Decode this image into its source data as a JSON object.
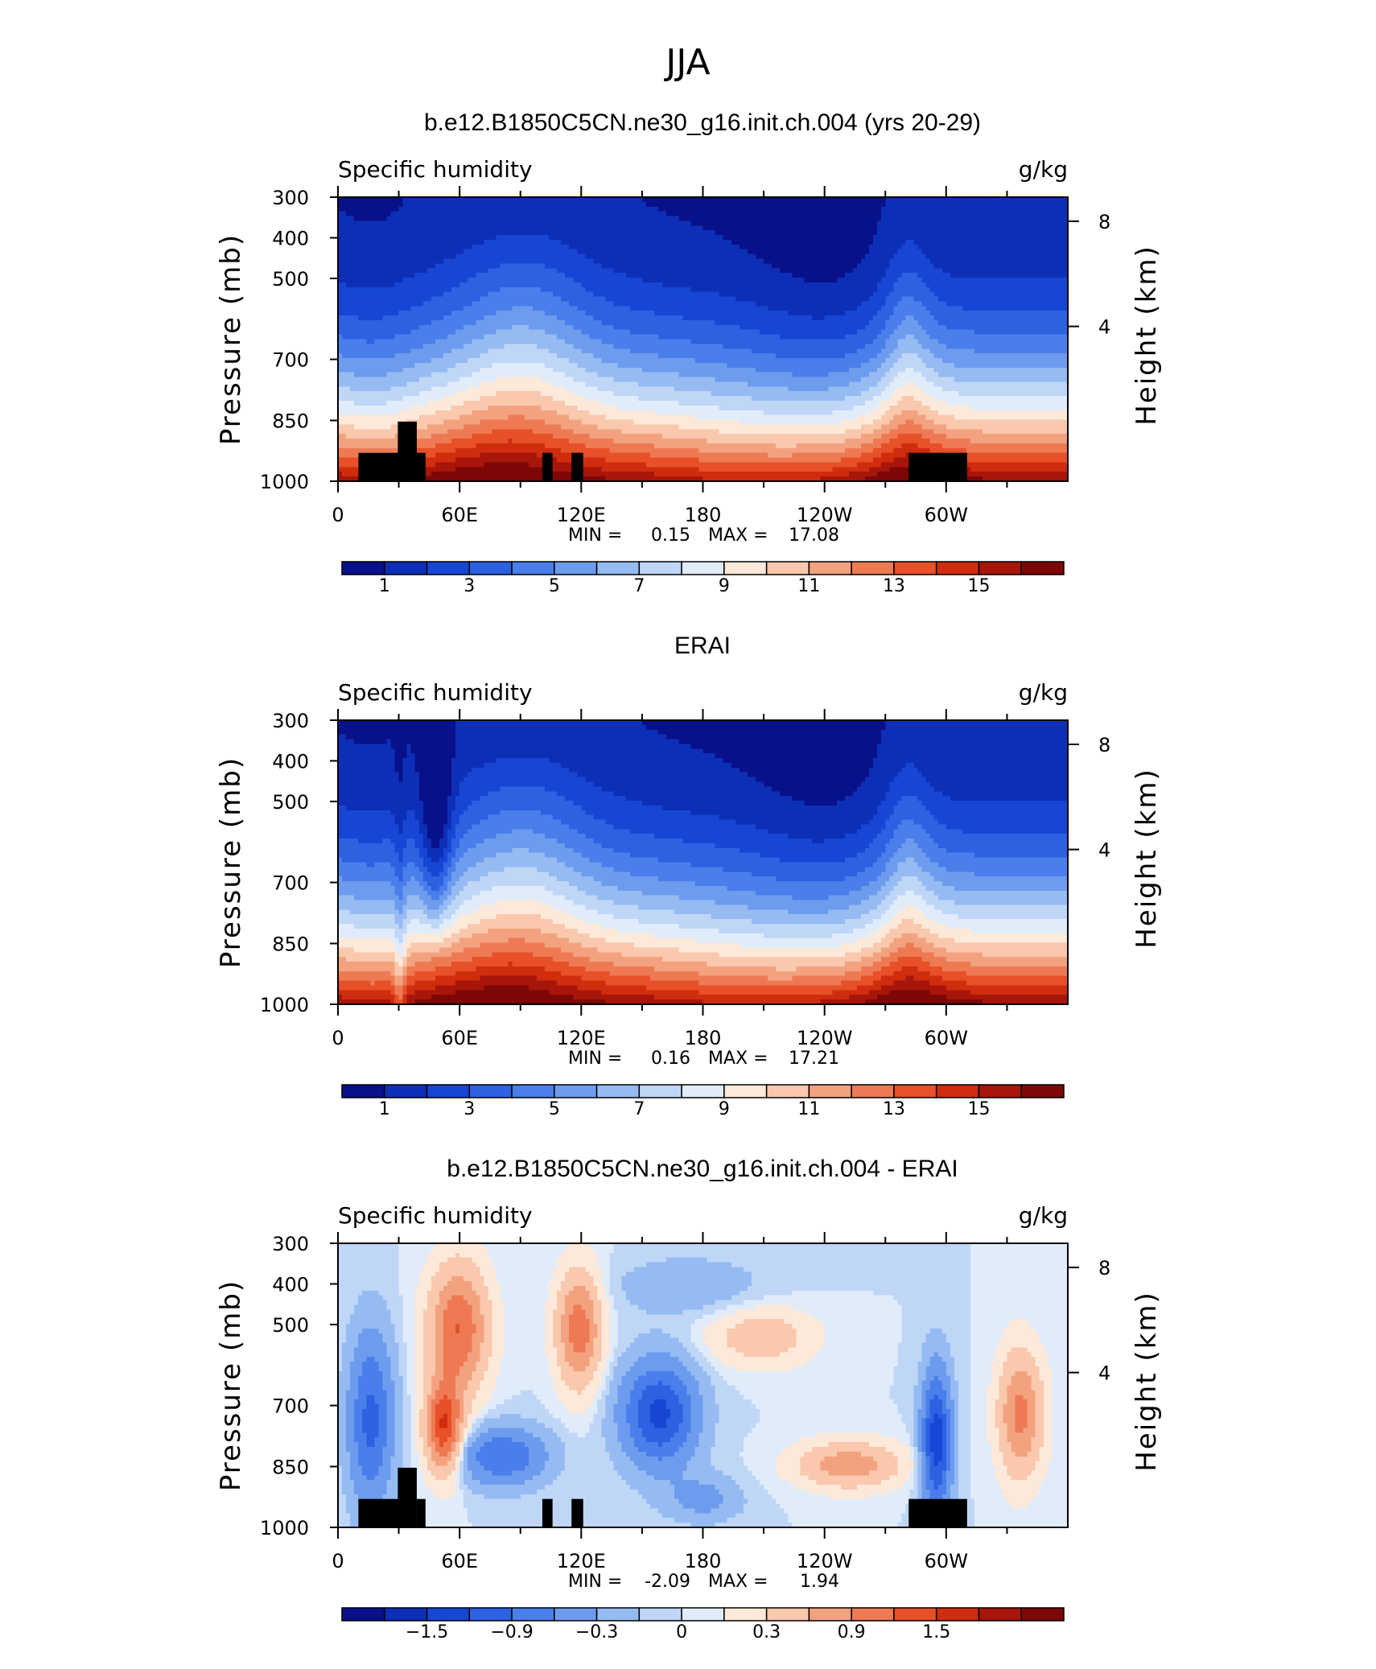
{
  "figure": {
    "title": "JJA"
  },
  "chart_data": [
    {
      "type": "heatmap",
      "title": "b.e12.B1850C5CN.ne30_g16.init.ch.004 (yrs 20-29)",
      "left_label": "Specific humidity",
      "right_label": "g/kg",
      "ylabel": "Pressure (mb)",
      "ylabel_right": "Height (km)",
      "y_ticks": [
        "300",
        "400",
        "500",
        "700",
        "850",
        "1000"
      ],
      "y_right_ticks": [
        "8",
        "4"
      ],
      "x_ticks": [
        "0",
        "60E",
        "120E",
        "180",
        "120W",
        "60W"
      ],
      "min_label": "MIN =",
      "min_value": "0.15",
      "max_label": "MAX =",
      "max_value": "17.08",
      "colorbar_labels": [
        "1",
        "3",
        "5",
        "7",
        "9",
        "11",
        "13",
        "15"
      ],
      "colorbar_colors": [
        "#08108a",
        "#0d2fb7",
        "#1746d4",
        "#2c61e2",
        "#4a7eea",
        "#6d9cee",
        "#95bbf2",
        "#bfd6f7",
        "#e0ecfa",
        "#fde9d9",
        "#f9c8ad",
        "#f3a280",
        "#ee7a53",
        "#e75028",
        "#cf2d0e",
        "#a8150a",
        "#7c0706"
      ],
      "levels": [
        1,
        2,
        3,
        4,
        5,
        6,
        7,
        8,
        9,
        10,
        11,
        12,
        13,
        14,
        15,
        16
      ]
    },
    {
      "type": "heatmap",
      "title": "ERAI",
      "left_label": "Specific humidity",
      "right_label": "g/kg",
      "ylabel": "Pressure (mb)",
      "ylabel_right": "Height (km)",
      "y_ticks": [
        "300",
        "400",
        "500",
        "700",
        "850",
        "1000"
      ],
      "y_right_ticks": [
        "8",
        "4"
      ],
      "x_ticks": [
        "0",
        "60E",
        "120E",
        "180",
        "120W",
        "60W"
      ],
      "min_label": "MIN =",
      "min_value": "0.16",
      "max_label": "MAX =",
      "max_value": "17.21",
      "colorbar_labels": [
        "1",
        "3",
        "5",
        "7",
        "9",
        "11",
        "13",
        "15"
      ],
      "colorbar_colors": [
        "#08108a",
        "#0d2fb7",
        "#1746d4",
        "#2c61e2",
        "#4a7eea",
        "#6d9cee",
        "#95bbf2",
        "#bfd6f7",
        "#e0ecfa",
        "#fde9d9",
        "#f9c8ad",
        "#f3a280",
        "#ee7a53",
        "#e75028",
        "#cf2d0e",
        "#a8150a",
        "#7c0706"
      ],
      "levels": [
        1,
        2,
        3,
        4,
        5,
        6,
        7,
        8,
        9,
        10,
        11,
        12,
        13,
        14,
        15,
        16
      ]
    },
    {
      "type": "heatmap",
      "title": "b.e12.B1850C5CN.ne30_g16.init.ch.004 - ERAI",
      "left_label": "Specific humidity",
      "right_label": "g/kg",
      "ylabel": "Pressure (mb)",
      "ylabel_right": "Height (km)",
      "y_ticks": [
        "300",
        "400",
        "500",
        "700",
        "850",
        "1000"
      ],
      "y_right_ticks": [
        "8",
        "4"
      ],
      "x_ticks": [
        "0",
        "60E",
        "120E",
        "180",
        "120W",
        "60W"
      ],
      "min_label": "MIN =",
      "min_value": "-2.09",
      "max_label": "MAX =",
      "max_value": "1.94",
      "colorbar_labels": [
        "-1.5",
        "-0.9",
        "-0.3",
        "0",
        "0.3",
        "0.9",
        "1.5"
      ],
      "colorbar_colors": [
        "#08108a",
        "#0d2fb7",
        "#1746d4",
        "#2c61e2",
        "#4a7eea",
        "#6d9cee",
        "#95bbf2",
        "#bfd6f7",
        "#e0ecfa",
        "#fde9d9",
        "#f9c8ad",
        "#f3a280",
        "#ee7a53",
        "#e75028",
        "#cf2d0e",
        "#a8150a",
        "#7c0706"
      ],
      "levels": [
        -1.8,
        -1.5,
        -1.2,
        -0.9,
        -0.6,
        -0.3,
        -0.1,
        0,
        0.1,
        0.3,
        0.6,
        0.9,
        1.2,
        1.5,
        1.8
      ]
    }
  ]
}
